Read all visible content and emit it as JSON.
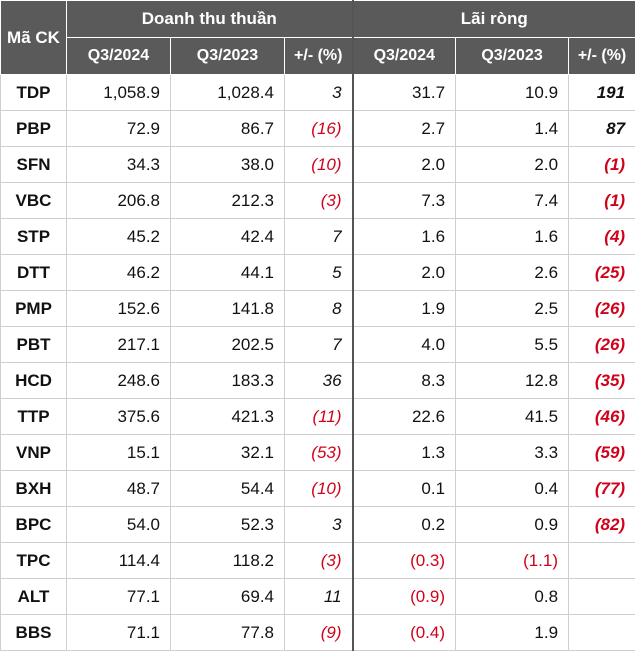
{
  "header": {
    "code_label": "Mã CK",
    "group1": "Doanh thu thuần",
    "group2": "Lãi ròng",
    "sub": [
      "Q3/2024",
      "Q3/2023",
      "+/- (%)",
      "Q3/2024",
      "Q3/2023",
      "+/- (%)"
    ]
  },
  "colors": {
    "header_bg": "#5a5a5a",
    "negative": "#d0021b"
  },
  "rows": [
    {
      "code": "TDP",
      "rev_2024": "1,058.9",
      "rev_2023": "1,028.4",
      "rev_chg": "3",
      "np_2024": "31.7",
      "np_2023": "10.9",
      "np_chg": "191"
    },
    {
      "code": "PBP",
      "rev_2024": "72.9",
      "rev_2023": "86.7",
      "rev_chg": "(16)",
      "np_2024": "2.7",
      "np_2023": "1.4",
      "np_chg": "87"
    },
    {
      "code": "SFN",
      "rev_2024": "34.3",
      "rev_2023": "38.0",
      "rev_chg": "(10)",
      "np_2024": "2.0",
      "np_2023": "2.0",
      "np_chg": "(1)"
    },
    {
      "code": "VBC",
      "rev_2024": "206.8",
      "rev_2023": "212.3",
      "rev_chg": "(3)",
      "np_2024": "7.3",
      "np_2023": "7.4",
      "np_chg": "(1)"
    },
    {
      "code": "STP",
      "rev_2024": "45.2",
      "rev_2023": "42.4",
      "rev_chg": "7",
      "np_2024": "1.6",
      "np_2023": "1.6",
      "np_chg": "(4)"
    },
    {
      "code": "DTT",
      "rev_2024": "46.2",
      "rev_2023": "44.1",
      "rev_chg": "5",
      "np_2024": "2.0",
      "np_2023": "2.6",
      "np_chg": "(25)"
    },
    {
      "code": "PMP",
      "rev_2024": "152.6",
      "rev_2023": "141.8",
      "rev_chg": "8",
      "np_2024": "1.9",
      "np_2023": "2.5",
      "np_chg": "(26)"
    },
    {
      "code": "PBT",
      "rev_2024": "217.1",
      "rev_2023": "202.5",
      "rev_chg": "7",
      "np_2024": "4.0",
      "np_2023": "5.5",
      "np_chg": "(26)"
    },
    {
      "code": "HCD",
      "rev_2024": "248.6",
      "rev_2023": "183.3",
      "rev_chg": "36",
      "np_2024": "8.3",
      "np_2023": "12.8",
      "np_chg": "(35)"
    },
    {
      "code": "TTP",
      "rev_2024": "375.6",
      "rev_2023": "421.3",
      "rev_chg": "(11)",
      "np_2024": "22.6",
      "np_2023": "41.5",
      "np_chg": "(46)"
    },
    {
      "code": "VNP",
      "rev_2024": "15.1",
      "rev_2023": "32.1",
      "rev_chg": "(53)",
      "np_2024": "1.3",
      "np_2023": "3.3",
      "np_chg": "(59)"
    },
    {
      "code": "BXH",
      "rev_2024": "48.7",
      "rev_2023": "54.4",
      "rev_chg": "(10)",
      "np_2024": "0.1",
      "np_2023": "0.4",
      "np_chg": "(77)"
    },
    {
      "code": "BPC",
      "rev_2024": "54.0",
      "rev_2023": "52.3",
      "rev_chg": "3",
      "np_2024": "0.2",
      "np_2023": "0.9",
      "np_chg": "(82)"
    },
    {
      "code": "TPC",
      "rev_2024": "114.4",
      "rev_2023": "118.2",
      "rev_chg": "(3)",
      "np_2024": "(0.3)",
      "np_2023": "(1.1)",
      "np_chg": ""
    },
    {
      "code": "ALT",
      "rev_2024": "77.1",
      "rev_2023": "69.4",
      "rev_chg": "11",
      "np_2024": "(0.9)",
      "np_2023": "0.8",
      "np_chg": ""
    },
    {
      "code": "BBS",
      "rev_2024": "71.1",
      "rev_2023": "77.8",
      "rev_chg": "(9)",
      "np_2024": "(0.4)",
      "np_2023": "1.9",
      "np_chg": ""
    }
  ]
}
